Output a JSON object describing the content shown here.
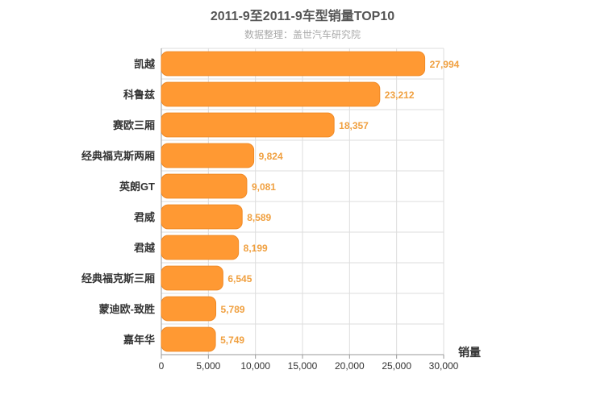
{
  "colors": {
    "bar": "#FF9933",
    "bar_stroke": "#f08a26",
    "label": "#F0A040",
    "grid": "#dddddd",
    "axis": "#999999"
  },
  "chart_data": {
    "type": "bar",
    "orientation": "horizontal",
    "title": "2011-9至2011-9车型销量TOP10",
    "subtitle": "数据整理：盖世汽车研究院",
    "categories": [
      "凯越",
      "科鲁兹",
      "赛欧三厢",
      "经典福克斯两厢",
      "英朗GT",
      "君威",
      "君越",
      "经典福克斯三厢",
      "蒙迪欧-致胜",
      "嘉年华"
    ],
    "values": [
      27994,
      23212,
      18357,
      9824,
      9081,
      8589,
      8199,
      6545,
      5789,
      5749
    ],
    "value_labels": [
      "27,994",
      "23,212",
      "18,357",
      "9,824",
      "9,081",
      "8,589",
      "8,199",
      "6,545",
      "5,789",
      "5,749"
    ],
    "xlabel": "销量",
    "ylabel": "",
    "xlim": [
      0,
      30000
    ],
    "ticks": [
      0,
      5000,
      10000,
      15000,
      20000,
      25000,
      30000
    ],
    "tick_labels": [
      "0",
      "5,000",
      "10,000",
      "15,000",
      "20,000",
      "25,000",
      "30,000"
    ],
    "grid": true
  }
}
